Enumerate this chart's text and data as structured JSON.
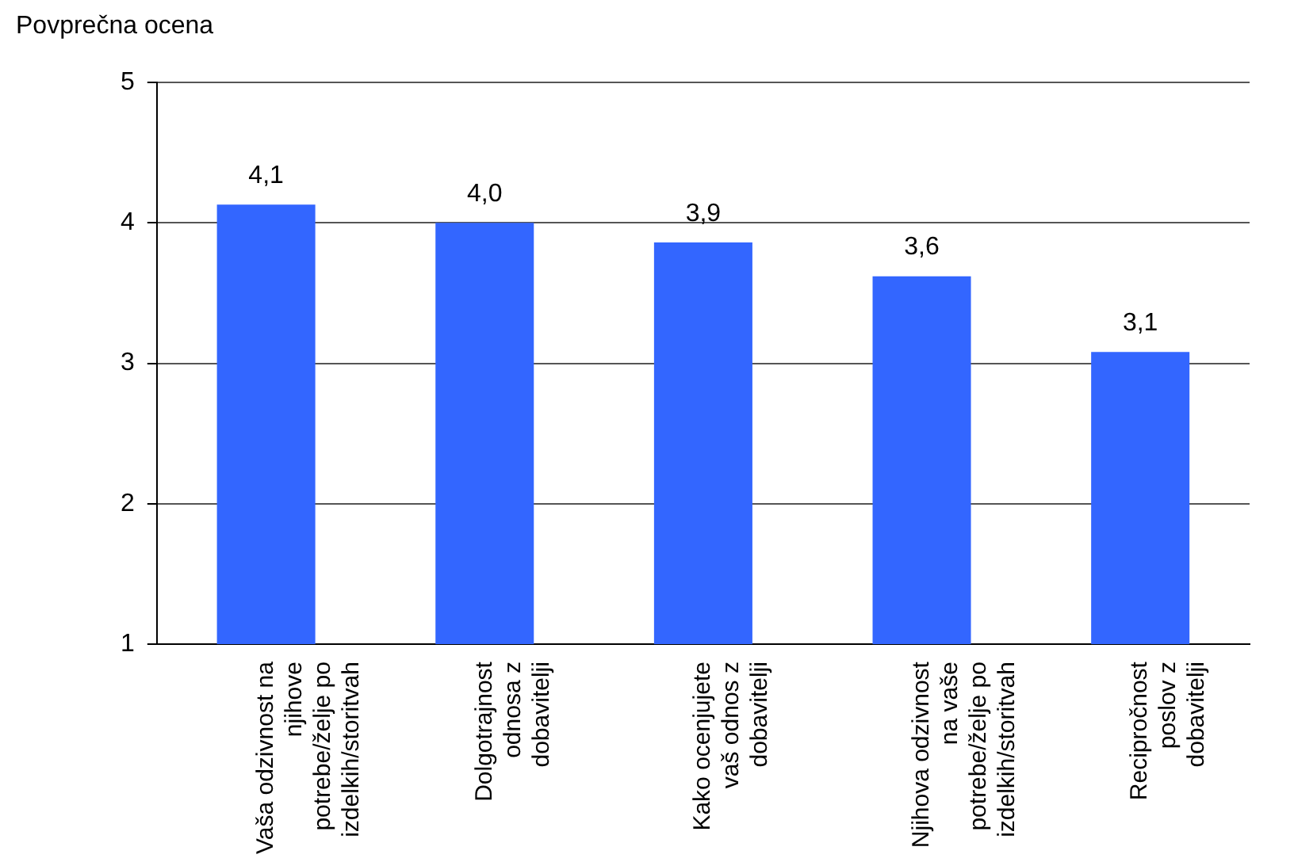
{
  "chart_data": {
    "type": "bar",
    "ylabel": "Povprečna ocena",
    "categories": [
      "Vaša odzivnost na njihove potrebe/želje po izdelkih/storitvah",
      "Dolgotrajnost odnosa z dobavitelji",
      "Kako ocenjujete vaš odnos z dobavitelji",
      "Njihova odzivnost na vaše potrebe/želje po izdelkih/storitvah",
      "Recipročnost poslov z dobavitelji"
    ],
    "values": [
      4.13,
      4.0,
      3.86,
      3.62,
      3.08
    ],
    "value_labels": [
      "4,1",
      "4,0",
      "3,9",
      "3,6",
      "3,1"
    ],
    "color": "#3366ff",
    "ylim": [
      1,
      5
    ],
    "yticks": [
      1,
      2,
      3,
      4,
      5
    ],
    "grid": "y",
    "legend": false
  }
}
